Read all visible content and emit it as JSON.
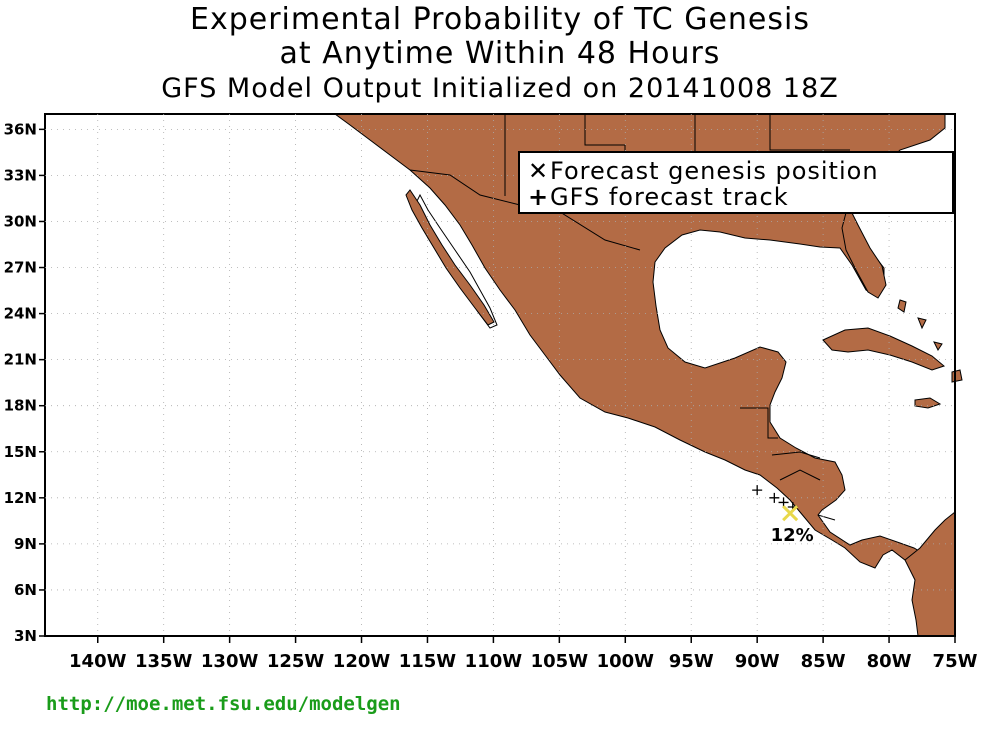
{
  "title": {
    "line1": "Experimental Probability of TC Genesis",
    "line2": "at Anytime Within 48 Hours",
    "line3": "GFS Model Output Initialized on 20141008 18Z"
  },
  "legend": {
    "genesis_symbol": "✕",
    "genesis_label": "Forecast genesis position",
    "track_symbol": "+",
    "track_label": "GFS forecast track"
  },
  "axes": {
    "lat_labels": [
      "36N",
      "33N",
      "30N",
      "27N",
      "24N",
      "21N",
      "18N",
      "15N",
      "12N",
      "9N",
      "6N",
      "3N"
    ],
    "lon_labels": [
      "140W",
      "135W",
      "130W",
      "125W",
      "120W",
      "115W",
      "110W",
      "105W",
      "100W",
      "95W",
      "90W",
      "85W",
      "80W",
      "75W"
    ],
    "lat_range": [
      3,
      37
    ],
    "lon_range": [
      -144,
      -75
    ]
  },
  "genesis": {
    "probability_label": "12%",
    "position": {
      "lon": -87.5,
      "lat": 11.0
    },
    "marker_color": "#e8d84a"
  },
  "track": [
    {
      "lon": -90.0,
      "lat": 12.5
    },
    {
      "lon": -88.7,
      "lat": 12.0
    },
    {
      "lon": -88.0,
      "lat": 11.7
    },
    {
      "lon": -87.3,
      "lat": 11.4
    }
  ],
  "colors": {
    "land": "#b36b45",
    "ocean": "#ffffff",
    "url": "#1a9c1a"
  },
  "footer": {
    "url": "http://moe.met.fsu.edu/modelgen"
  }
}
